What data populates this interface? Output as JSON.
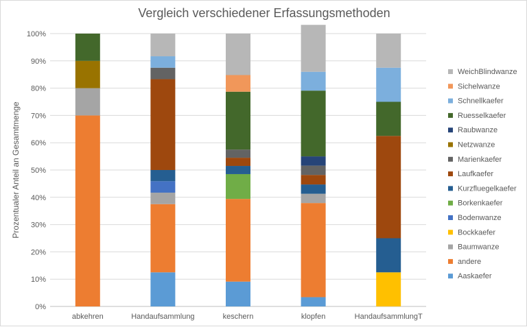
{
  "chart_data": {
    "type": "bar",
    "stacked": true,
    "title": "Vergleich verschiedener  Erfassungsmethoden",
    "xlabel": "",
    "ylabel": "Prozentualer Anteil an Gesamtmenge",
    "ylim": [
      0,
      100
    ],
    "y_ticks": [
      "0%",
      "10%",
      "20%",
      "30%",
      "40%",
      "50%",
      "60%",
      "70%",
      "80%",
      "90%",
      "100%"
    ],
    "categories": [
      "abkehren",
      "Handaufsammlung",
      "keschern",
      "klopfen",
      "HandaufsammlungT"
    ],
    "legend_position": "right",
    "series": [
      {
        "name": "Aaskaefer",
        "color": "#5b9bd5",
        "values": [
          0,
          12.5,
          9.1,
          3.4,
          0
        ]
      },
      {
        "name": "andere",
        "color": "#ed7d31",
        "values": [
          70,
          25.0,
          30.3,
          34.5,
          0
        ]
      },
      {
        "name": "Baumwanze",
        "color": "#a5a5a5",
        "values": [
          10,
          4.2,
          0,
          3.4,
          0
        ]
      },
      {
        "name": "Bockkaefer",
        "color": "#ffc000",
        "values": [
          0,
          0,
          0,
          0,
          12.5
        ]
      },
      {
        "name": "Bodenwanze",
        "color": "#4472c4",
        "values": [
          0,
          4.2,
          0,
          0,
          0
        ]
      },
      {
        "name": "Borkenkaefer",
        "color": "#70ad47",
        "values": [
          0,
          0,
          9.1,
          0,
          0
        ]
      },
      {
        "name": "Kurzfluegelkaefer",
        "color": "#255e91",
        "values": [
          0,
          4.1,
          3.0,
          3.4,
          12.5
        ]
      },
      {
        "name": "Laufkaefer",
        "color": "#9e480e",
        "values": [
          0,
          33.3,
          3.0,
          3.5,
          37.5
        ]
      },
      {
        "name": "Marienkaefer",
        "color": "#636363",
        "values": [
          0,
          4.2,
          3.0,
          3.4,
          0
        ]
      },
      {
        "name": "Netzwanze",
        "color": "#997300",
        "values": [
          10,
          0,
          0,
          0,
          0
        ]
      },
      {
        "name": "Raubwanze",
        "color": "#264478",
        "values": [
          0,
          0,
          0,
          3.4,
          0
        ]
      },
      {
        "name": "Ruesselkaefer",
        "color": "#43682b",
        "values": [
          10,
          0,
          21.2,
          24.1,
          12.5
        ]
      },
      {
        "name": "Schnellkaefer",
        "color": "#7cafdd",
        "values": [
          0,
          4.2,
          0,
          6.9,
          12.5
        ]
      },
      {
        "name": "Sichelwanze",
        "color": "#f1975a",
        "values": [
          0,
          0,
          6.1,
          0,
          0
        ]
      },
      {
        "name": "WeichBlindwanze",
        "color": "#b7b7b7",
        "values": [
          0,
          8.3,
          15.2,
          17.2,
          12.5
        ]
      }
    ]
  }
}
